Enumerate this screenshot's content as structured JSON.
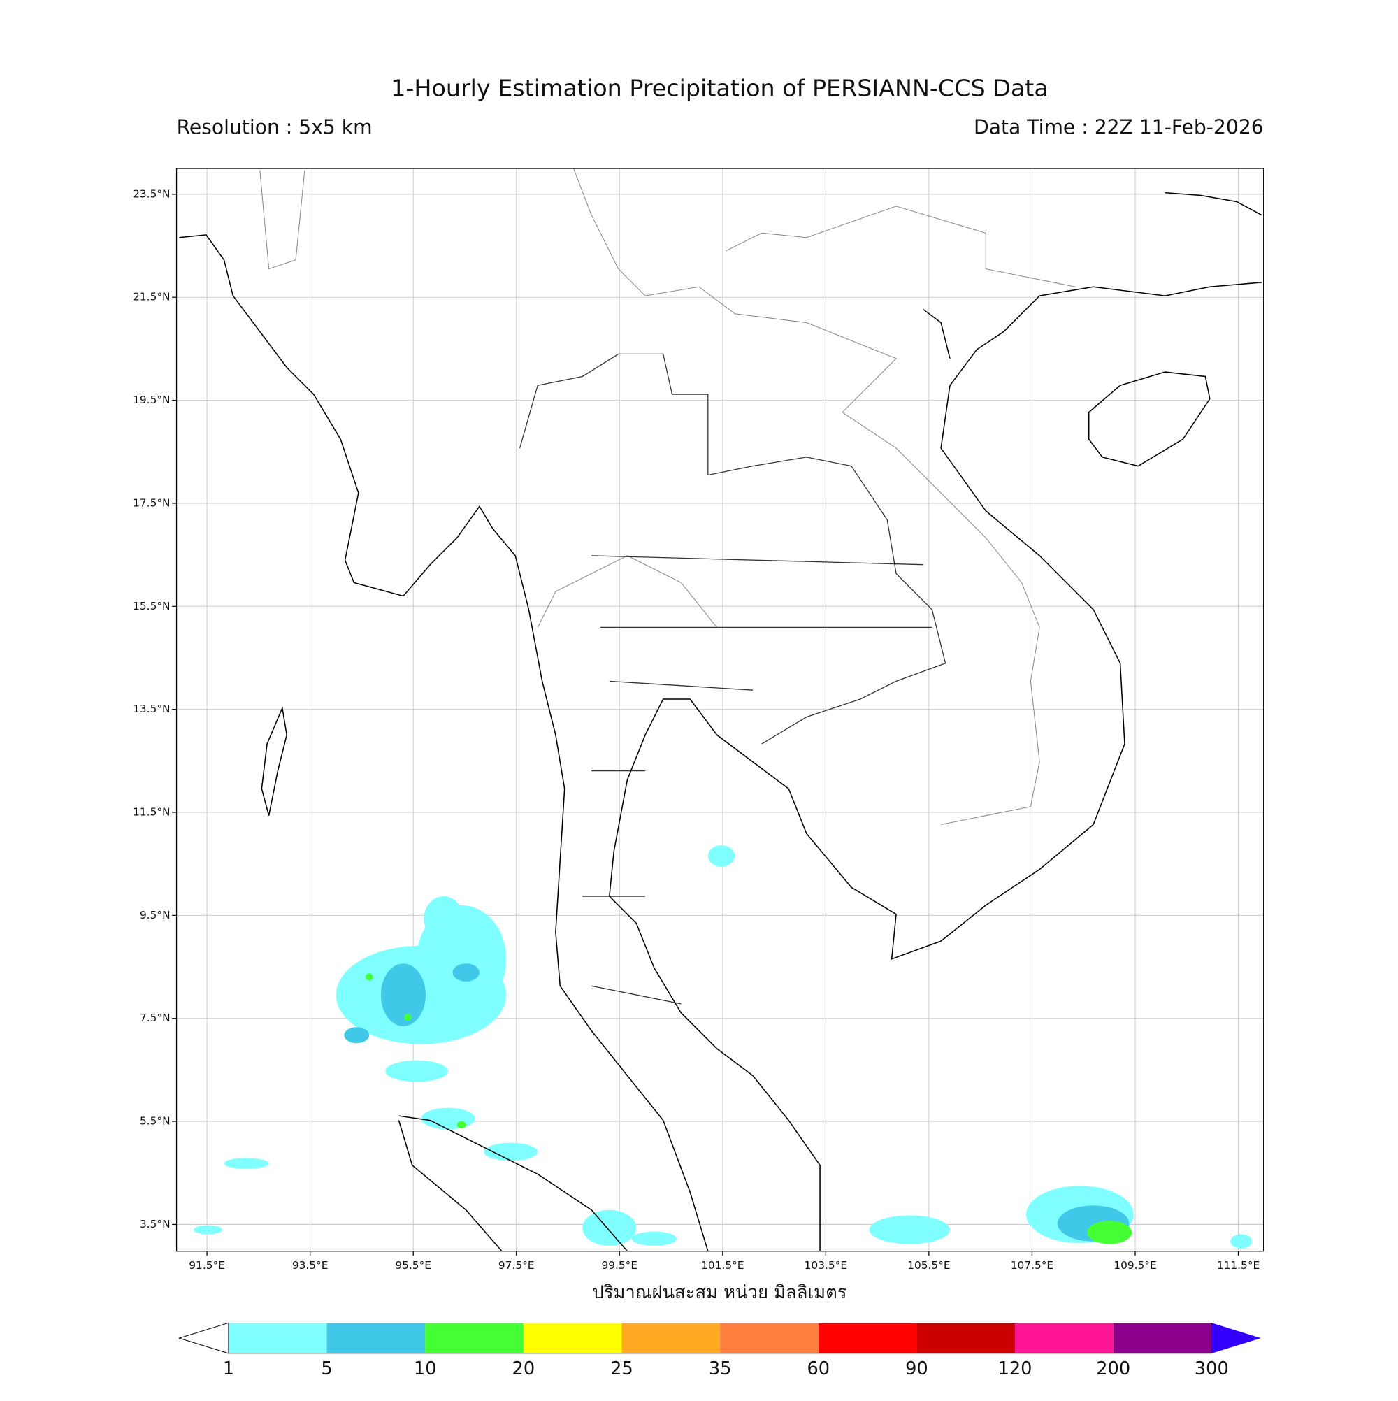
{
  "map": {
    "title": "1-Hourly Estimation Precipitation of PERSIANN-CCS Data",
    "resolution": "Resolution : 5x5 km",
    "data_time": "Data Time : 22Z 11-Feb-2026",
    "x_label": "ปริมาณฝนสะสม หน่วย มิลลิเมตร",
    "lon_lim": [
      90.91,
      111.99
    ],
    "lat_lim": [
      2.98,
      24.0
    ],
    "lon_ticks": [
      {
        "value": 91.5,
        "label": "91.5°E"
      },
      {
        "value": 93.5,
        "label": "93.5°E"
      },
      {
        "value": 95.5,
        "label": "95.5°E"
      },
      {
        "value": 97.5,
        "label": "97.5°E"
      },
      {
        "value": 99.5,
        "label": "99.5°E"
      },
      {
        "value": 101.5,
        "label": "101.5°E"
      },
      {
        "value": 103.5,
        "label": "103.5°E"
      },
      {
        "value": 105.5,
        "label": "105.5°E"
      },
      {
        "value": 107.5,
        "label": "107.5°E"
      },
      {
        "value": 109.5,
        "label": "109.5°E"
      },
      {
        "value": 111.5,
        "label": "111.5°E"
      }
    ],
    "lat_ticks": [
      {
        "value": 3.5,
        "label": "3.5°N"
      },
      {
        "value": 5.5,
        "label": "5.5°N"
      },
      {
        "value": 7.5,
        "label": "7.5°N"
      },
      {
        "value": 9.5,
        "label": "9.5°N"
      },
      {
        "value": 11.5,
        "label": "11.5°N"
      },
      {
        "value": 13.5,
        "label": "13.5°N"
      },
      {
        "value": 15.5,
        "label": "15.5°N"
      },
      {
        "value": 17.5,
        "label": "17.5°N"
      },
      {
        "value": 19.5,
        "label": "19.5°N"
      },
      {
        "value": 21.5,
        "label": "21.5°N"
      },
      {
        "value": 23.5,
        "label": "23.5°N"
      }
    ],
    "grid": true
  },
  "colorbar": {
    "levels": [
      1,
      5,
      10,
      20,
      25,
      35,
      60,
      90,
      120,
      200,
      300
    ],
    "colors": [
      "#7fffff",
      "#40c8e8",
      "#44ff33",
      "#ffff00",
      "#ffaa22",
      "#ff7f3f",
      "#ff0000",
      "#cc0000",
      "#ff1493",
      "#8b008b"
    ],
    "under_color": "#ffffff",
    "over_color": "#3300ff"
  }
}
